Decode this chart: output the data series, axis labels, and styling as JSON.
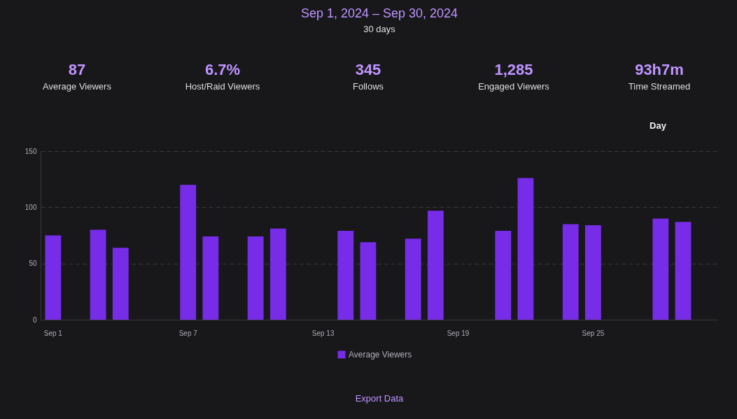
{
  "chart_data": {
    "type": "bar",
    "title": "Sep 1, 2024 – Sep 30, 2024",
    "subtitle": "30 days",
    "annotations": [
      "87",
      "Average Viewers",
      "6.7%",
      "Host/Raid Viewers",
      "345",
      "Follows",
      "1,285",
      "Engaged Viewers",
      "93h7m",
      "Time Streamed",
      "Day",
      "Export Data"
    ],
    "categories": [
      "Sep 1",
      null,
      null,
      null,
      null,
      null,
      "Sep 7",
      null,
      null,
      null,
      null,
      null,
      "Sep 13",
      null,
      null,
      null,
      null,
      null,
      "Sep 19",
      null,
      null,
      null,
      null,
      null,
      "Sep 25",
      null,
      null,
      null,
      null,
      null
    ],
    "series": [
      {
        "name": "Average Viewers",
        "color": "#772ce8",
        "values": [
          75,
          null,
          80,
          64,
          null,
          null,
          120,
          74,
          null,
          74,
          81,
          null,
          null,
          79,
          69,
          null,
          72,
          97,
          null,
          null,
          79,
          126,
          null,
          85,
          84,
          null,
          null,
          90,
          87,
          null
        ]
      }
    ],
    "ylim": [
      0,
      150
    ],
    "yticks": [
      0,
      50,
      100,
      150
    ],
    "grid": "y",
    "legend": "bottom"
  }
}
